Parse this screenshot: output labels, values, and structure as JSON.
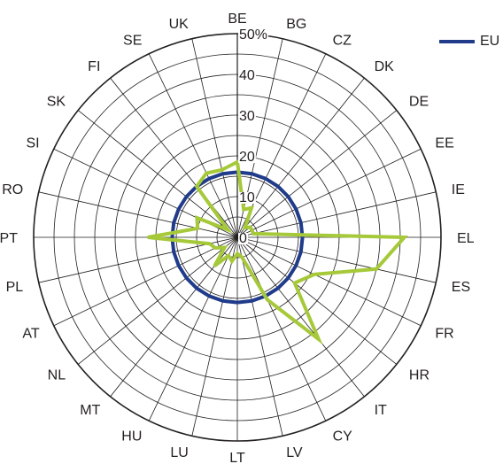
{
  "chart_data": {
    "type": "radar",
    "categories": [
      "BE",
      "BG",
      "CZ",
      "DK",
      "DE",
      "EE",
      "IE",
      "EL",
      "ES",
      "FR",
      "HR",
      "IT",
      "CY",
      "LV",
      "LT",
      "LU",
      "HU",
      "MT",
      "NL",
      "AT",
      "PL",
      "PT",
      "RO",
      "SI",
      "SK",
      "FI",
      "SE",
      "UK"
    ],
    "rlim": [
      0,
      50
    ],
    "ticks": [
      "0",
      "10",
      "20",
      "30",
      "40",
      "50%"
    ],
    "tick_values": [
      0,
      10,
      20,
      30,
      40,
      50
    ],
    "grid": true,
    "legend_position": "top-right",
    "series": [
      {
        "name": "EU",
        "color": "#1f3b8a",
        "values": [
          16,
          16,
          16,
          16,
          16,
          16,
          16,
          16,
          16,
          16,
          16,
          16,
          16,
          16,
          16,
          16,
          16,
          16,
          16,
          16,
          16,
          16,
          16,
          16,
          16,
          16,
          16,
          16
        ]
      },
      {
        "name": "",
        "color": "#a6c93a",
        "values": [
          18.5,
          7,
          8,
          3,
          4,
          4,
          4,
          41,
          35,
          21,
          18,
          32,
          17,
          5,
          4,
          6,
          5,
          9,
          4,
          6,
          7,
          22,
          10,
          11,
          3,
          16,
          17.5,
          17
        ]
      }
    ]
  }
}
